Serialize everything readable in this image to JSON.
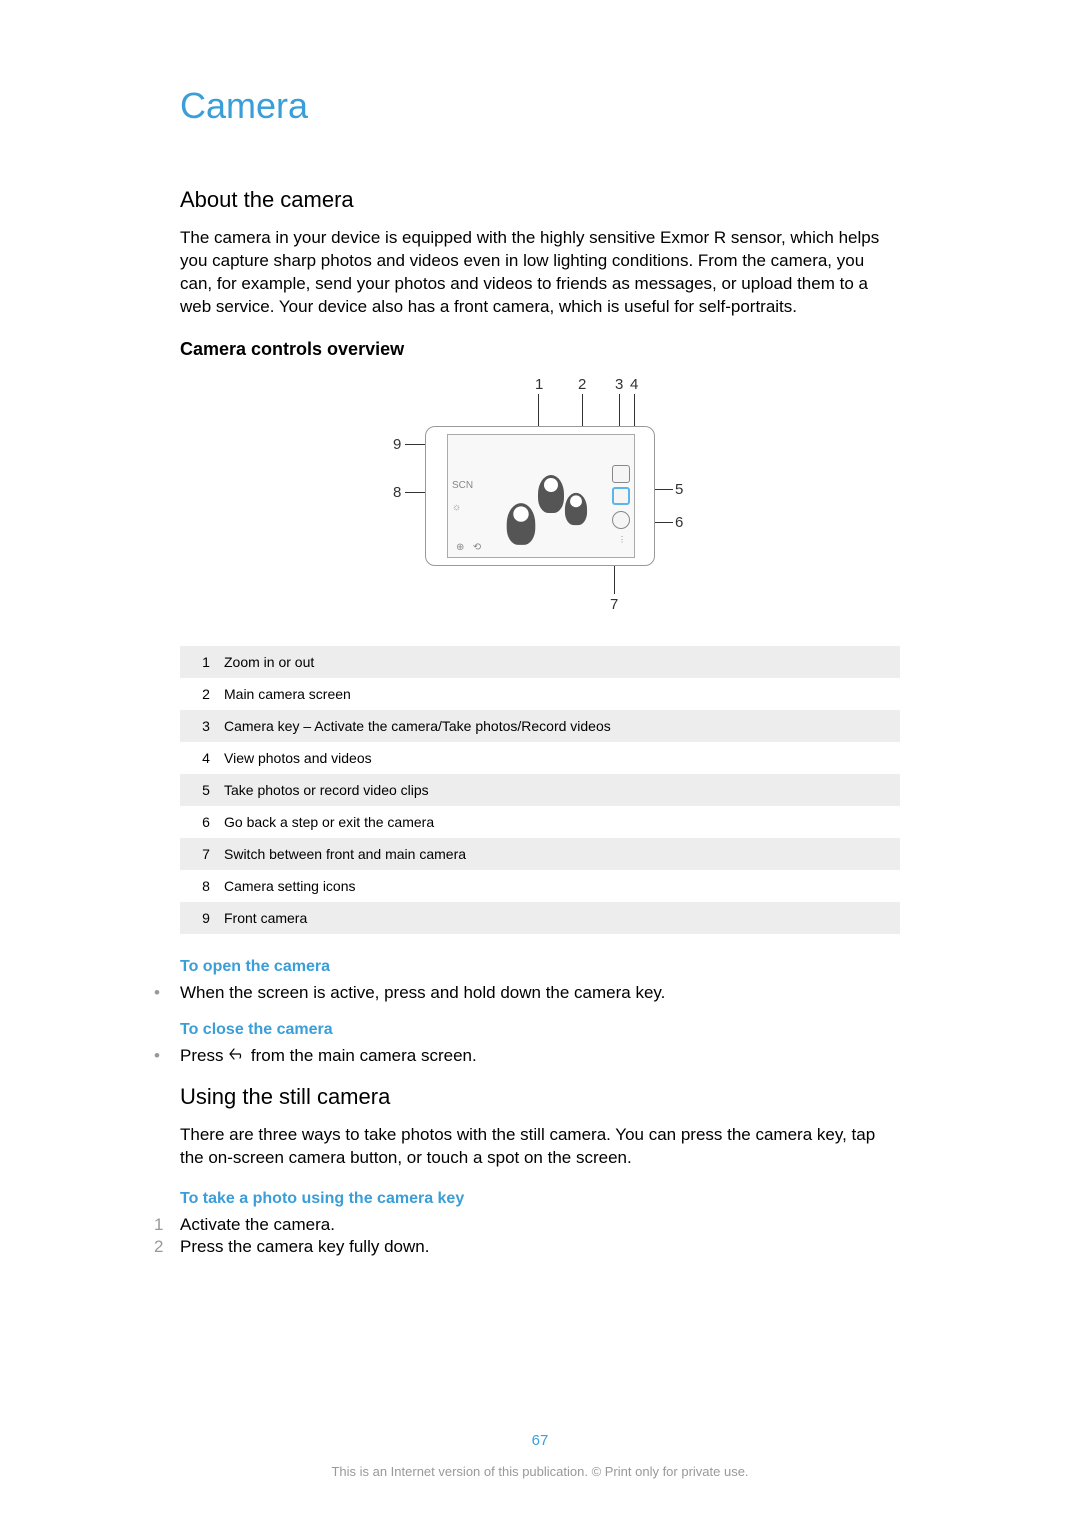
{
  "colors": {
    "accent": "#3a9ed8",
    "body_text": "#000000",
    "muted": "#999999",
    "table_stripe": "#ededed",
    "background": "#ffffff"
  },
  "typography": {
    "chapter_fontsize": 36,
    "section_fontsize": 22,
    "subsection_fontsize": 18,
    "body_fontsize": 17,
    "table_fontsize": 14,
    "footer_fontsize": 13
  },
  "chapter_title": "Camera",
  "section1": {
    "title": "About the camera",
    "body": "The camera in your device is equipped with the highly sensitive Exmor R sensor, which helps you capture sharp photos and videos even in low lighting conditions. From the camera, you can, for example, send your photos and videos to friends as messages, or upload them to a web service. Your device also has a front camera, which is useful for self-portraits."
  },
  "subsection_title": "Camera controls overview",
  "diagram": {
    "callouts": [
      "1",
      "2",
      "3",
      "4",
      "5",
      "6",
      "7",
      "8",
      "9"
    ]
  },
  "controls_table": {
    "rows": [
      {
        "num": "1",
        "desc": "Zoom in or out"
      },
      {
        "num": "2",
        "desc": "Main camera screen"
      },
      {
        "num": "3",
        "desc": "Camera key – Activate the camera/Take photos/Record videos"
      },
      {
        "num": "4",
        "desc": "View photos and videos"
      },
      {
        "num": "5",
        "desc": "Take photos or record video clips"
      },
      {
        "num": "6",
        "desc": "Go back a step or exit the camera"
      },
      {
        "num": "7",
        "desc": "Switch between front and main camera"
      },
      {
        "num": "8",
        "desc": "Camera setting icons"
      },
      {
        "num": "9",
        "desc": "Front camera"
      }
    ]
  },
  "open_camera": {
    "title": "To open the camera",
    "text": "When the screen is active, press and hold down the camera key."
  },
  "close_camera": {
    "title": "To close the camera",
    "text_before": "Press ",
    "text_after": " from the main camera screen."
  },
  "section2": {
    "title": "Using the still camera",
    "body": "There are three ways to take photos with the still camera. You can press the camera key, tap the on-screen camera button, or touch a spot on the screen."
  },
  "take_photo": {
    "title": "To take a photo using the camera key",
    "steps": [
      {
        "num": "1",
        "text": "Activate the camera."
      },
      {
        "num": "2",
        "text": "Press the camera key fully down."
      }
    ]
  },
  "page_number": "67",
  "footer": "This is an Internet version of this publication. © Print only for private use."
}
